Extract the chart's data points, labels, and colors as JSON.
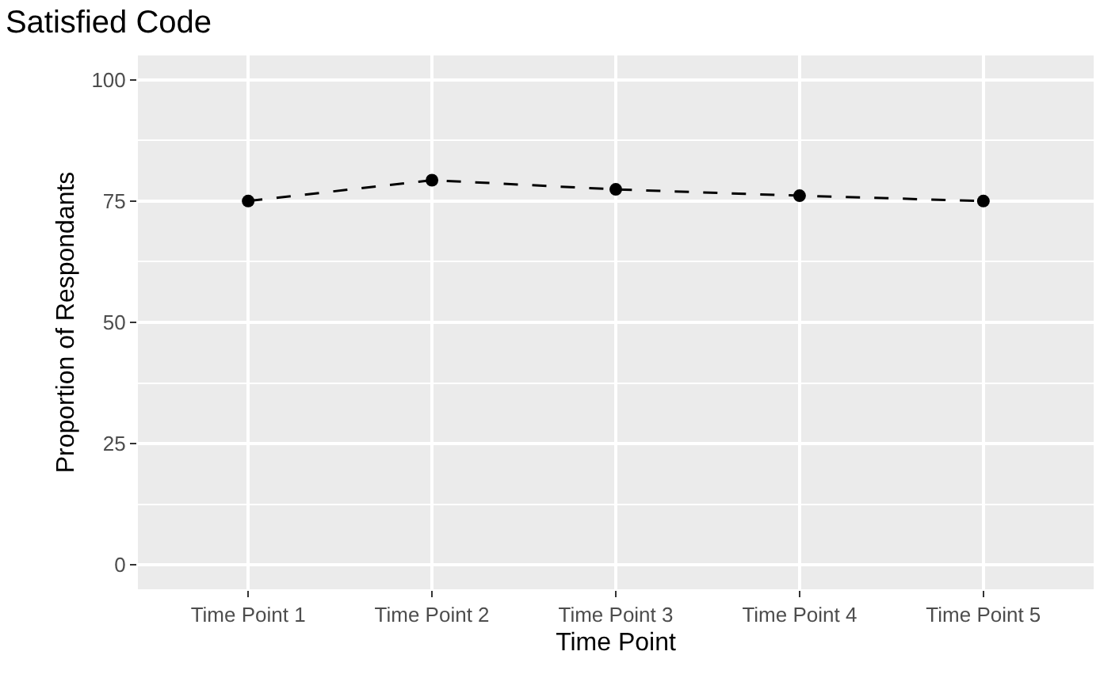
{
  "chart_data": {
    "type": "line",
    "title": "Satisfied Code",
    "xlabel": "Time Point",
    "ylabel": "Proportion of Respondants",
    "categories": [
      "Time Point 1",
      "Time Point 2",
      "Time Point 3",
      "Time Point 4",
      "Time Point 5"
    ],
    "series": [
      {
        "color": "#000000",
        "values": [
          75,
          79.3,
          77.4,
          76.1,
          75
        ]
      }
    ],
    "ylim": [
      -5,
      105
    ],
    "yticks": [
      0,
      25,
      50,
      75,
      100
    ],
    "grid": true,
    "marker": "circle",
    "line_style": "dashed"
  }
}
